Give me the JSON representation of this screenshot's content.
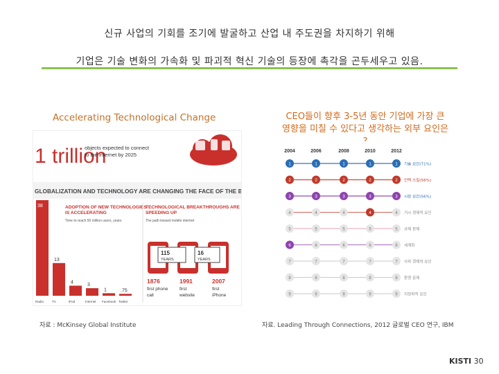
{
  "header": {
    "line1": "신규 사업의 기회를 조기에 발굴하고 산업 내 주도권을 차지하기 위해",
    "line2": "기업은 기술 변화의 가속화 및 파괴적 혁신 기술의 등장에 촉각을 곤두세우고 있음."
  },
  "left": {
    "caption": "Accelerating Technological Change",
    "source": "자료 : McKinsey Global Institute",
    "infographic": {
      "trillion_big": "1 trillion",
      "trillion_text_1": "objects expected to connect",
      "trillion_text_2": "to the Internet by 2025",
      "banner": "GLOBALIZATION AND TECHNOLOGY ARE CHANGING THE FACE OF THE BUSINESS WORLD",
      "adopt_title_1": "ADOPTION OF NEW TECHNOLOGIES",
      "adopt_title_2": "IS ACCELERATING",
      "adopt_sub": "Time to reach 50 million users, years",
      "break_title_1": "TECHNOLOGICAL BREAKTHROUGHS ARE",
      "break_title_2": "SPEEDING UP",
      "break_sub": "The path toward mobile internet",
      "bars": [
        {
          "label": "Radio",
          "value": 38
        },
        {
          "label": "TV",
          "value": 13
        },
        {
          "label": "iPod",
          "value": 4
        },
        {
          "label": "Internet",
          "value": 3
        },
        {
          "label": "Facebook",
          "value": 1
        },
        {
          "label": "Twitter",
          "value": 0.75
        }
      ],
      "bar_value_labels": [
        "38",
        "13",
        "4",
        "3",
        "1",
        ".75"
      ],
      "gap1_num": "115",
      "gap1_unit": "YEARS",
      "gap2_num": "16",
      "gap2_unit": "YEARS",
      "milestones": [
        {
          "year": "1876",
          "line1": "first phone",
          "line2": "call"
        },
        {
          "year": "1991",
          "line1": "first",
          "line2": "website"
        },
        {
          "year": "2007",
          "line1": "first",
          "line2": "iPhone"
        }
      ]
    }
  },
  "right": {
    "caption_1": "CEO들이 향후 3-5년 동안 기업에 가장 큰",
    "caption_2": "영향을 미칠 수 있다고 생각하는 외부 요인은",
    "caption_3": "?",
    "source": "자료. Leading Through Connections, 2012 글로벌 CEO 연구, IBM",
    "chart_data": {
      "type": "line",
      "x": [
        "2004",
        "2006",
        "2008",
        "2010",
        "2012"
      ],
      "y_ranks": [
        1,
        2,
        3,
        4,
        5,
        6,
        7,
        8,
        9
      ],
      "end_labels": [
        "기술 요인(71%)",
        "인력 스킬(56%)",
        "시장 요인(56%)",
        "거시 경제적 요인",
        "규제 문제",
        "세계화",
        "사회 경제적 요인",
        "환경 문제",
        "지정학적 요인"
      ],
      "series": [
        {
          "color": "#2a6db5",
          "values": [
            1,
            1,
            1,
            1,
            1
          ]
        },
        {
          "color": "#c0392b",
          "values": [
            2,
            2,
            2,
            2,
            2
          ]
        },
        {
          "color": "#8e44ad",
          "values": [
            3,
            3,
            3,
            3,
            3
          ]
        },
        {
          "color": "#c0392b",
          "values": [
            4,
            4,
            4,
            4,
            4
          ]
        },
        {
          "color": "#e08aa0",
          "values": [
            5,
            5,
            5,
            5,
            5
          ]
        },
        {
          "color": "#8e44ad",
          "values": [
            6,
            6,
            6,
            6,
            6
          ]
        },
        {
          "color": "#bbbbbb",
          "values": [
            7,
            7,
            7,
            7,
            7
          ]
        },
        {
          "color": "#bbbbbb",
          "values": [
            8,
            8,
            8,
            8,
            8
          ]
        },
        {
          "color": "#bbbbbb",
          "values": [
            9,
            9,
            9,
            9,
            9
          ]
        }
      ]
    }
  },
  "footer": {
    "brand": "KISTI",
    "page": "30"
  }
}
